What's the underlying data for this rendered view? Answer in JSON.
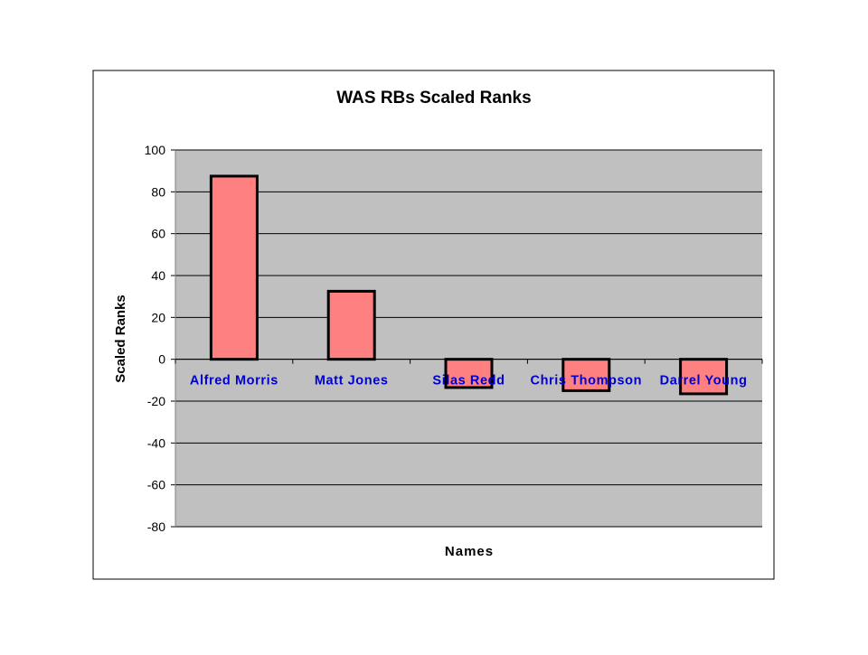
{
  "chart_data": {
    "type": "bar",
    "title": "WAS RBs Scaled Ranks",
    "xlabel": "Names",
    "ylabel": "Scaled Ranks",
    "categories": [
      "Alfred Morris",
      "Matt Jones",
      "Silas Redd",
      "Chris Thompson",
      "Darrel Young"
    ],
    "values": [
      87.5,
      32.5,
      -13.5,
      -15,
      -16.5
    ],
    "ylim": [
      -80,
      100
    ],
    "yticks": [
      100,
      80,
      60,
      40,
      20,
      0,
      -20,
      -40,
      -60,
      -80
    ],
    "grid": true,
    "legend": "none",
    "colors": {
      "bar_fill": "#ff8080",
      "bar_stroke": "#000000",
      "plot_bg": "#c0c0c0",
      "category_text": "#0000cc",
      "gridline": "#000000"
    }
  }
}
